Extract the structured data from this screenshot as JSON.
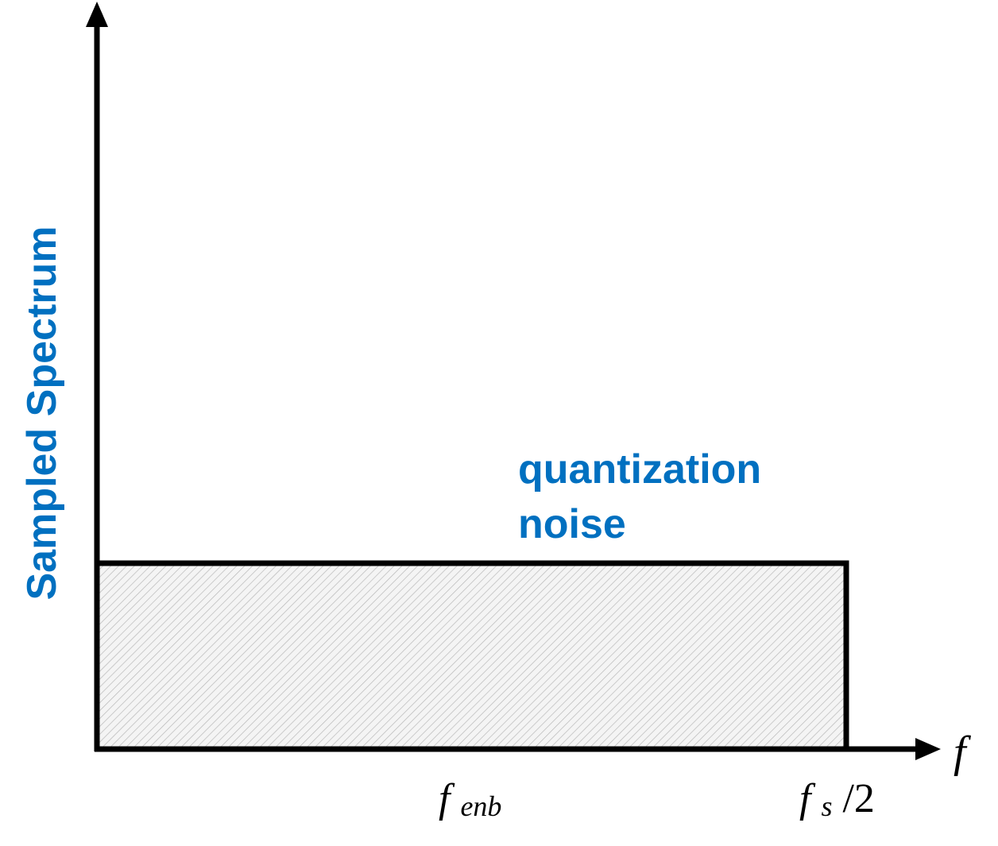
{
  "colors": {
    "axis": "#000000",
    "label": "#0070c0",
    "hatch": "#b8b8b8",
    "fill": "#f4f4f4"
  },
  "labels": {
    "y_axis": "Sampled Spectrum",
    "noise_line1": "quantization",
    "noise_line2": "noise",
    "x_axis_symbol": "f",
    "tick_enb_base": "f",
    "tick_enb_sub": "enb",
    "tick_fs_base": "f",
    "tick_fs_sub": "s",
    "tick_fs_suffix": "/2"
  }
}
